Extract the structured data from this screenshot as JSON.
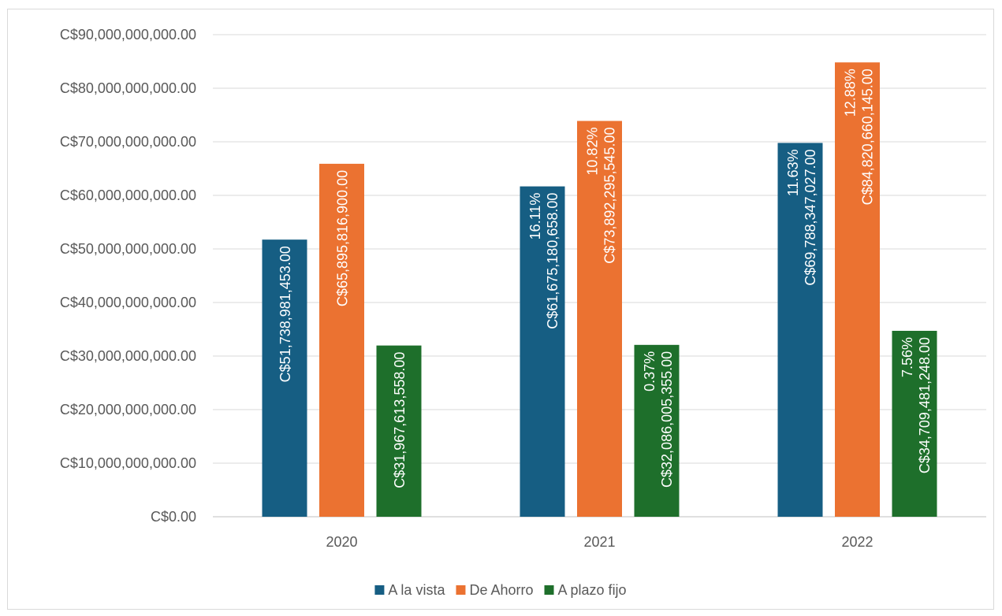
{
  "chart_data": {
    "type": "bar",
    "categories": [
      "2020",
      "2021",
      "2022"
    ],
    "ylim": [
      0,
      90000000000
    ],
    "y_ticks": [
      {
        "value": 0,
        "label": "C$0.00"
      },
      {
        "value": 10000000000,
        "label": "C$10,000,000,000.00"
      },
      {
        "value": 20000000000,
        "label": "C$20,000,000,000.00"
      },
      {
        "value": 30000000000,
        "label": "C$30,000,000,000.00"
      },
      {
        "value": 40000000000,
        "label": "C$40,000,000,000.00"
      },
      {
        "value": 50000000000,
        "label": "C$50,000,000,000.00"
      },
      {
        "value": 60000000000,
        "label": "C$60,000,000,000.00"
      },
      {
        "value": 70000000000,
        "label": "C$70,000,000,000.00"
      },
      {
        "value": 80000000000,
        "label": "C$80,000,000,000.00"
      },
      {
        "value": 90000000000,
        "label": "C$90,000,000,000.00"
      }
    ],
    "grid": true,
    "legend": "bottom",
    "series": [
      {
        "name": "A la vista",
        "color": "#165e83",
        "values": [
          51738981453,
          61675180658,
          69788347027
        ],
        "value_labels": [
          "C$51,738,981,453.00",
          "C$61,675,180,658.00",
          "C$69,788,347,027.00"
        ],
        "pct_labels": [
          "",
          "16.11%",
          "11.63%"
        ]
      },
      {
        "name": "De Ahorro",
        "color": "#eb7231",
        "values": [
          65895816900,
          73892295545,
          84820660145
        ],
        "value_labels": [
          "C$65,895,816,900.00",
          "C$73,892,295,545.00",
          "C$84,820,660,145.00"
        ],
        "pct_labels": [
          "",
          "10.82%",
          "12.88%"
        ]
      },
      {
        "name": "A plazo fijo",
        "color": "#1e6f2b",
        "values": [
          31967613558,
          32086005355,
          34709481248
        ],
        "value_labels": [
          "C$31,967,613,558.00",
          "C$32,086,005,355.00",
          "C$34,709,481,248.00"
        ],
        "pct_labels": [
          "",
          "0.37%",
          "7.56%"
        ]
      }
    ]
  }
}
